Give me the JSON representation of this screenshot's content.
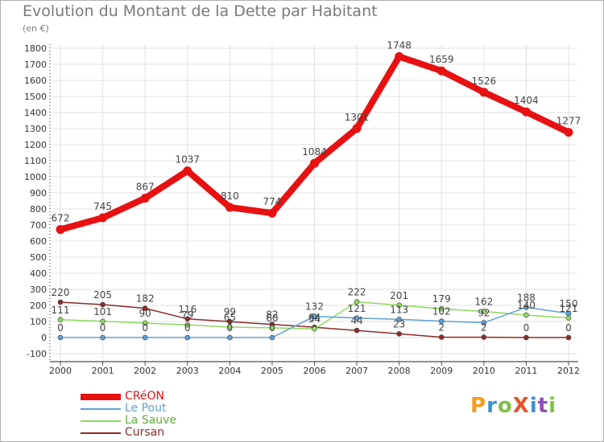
{
  "title": "Evolution du Montant de la Dette par Habitant",
  "unit_label": "(en €)",
  "logo": {
    "text": "ProXiti",
    "colors": [
      "#f39a1e",
      "#3d8fd0",
      "#7cc243",
      "#e8542b",
      "#3d8fd0",
      "#8c4fb3",
      "#7cc243"
    ]
  },
  "chart_data": {
    "type": "line",
    "x": [
      "2000",
      "2001",
      "2002",
      "2003",
      "2004",
      "2005",
      "2006",
      "2007",
      "2008",
      "2009",
      "2010",
      "2011",
      "2012"
    ],
    "ylim": [
      -100,
      1800
    ],
    "yticks": [
      -100,
      0,
      100,
      200,
      300,
      400,
      500,
      600,
      700,
      800,
      900,
      1000,
      1100,
      1200,
      1300,
      1400,
      1500,
      1600,
      1700,
      1800
    ],
    "grid": true,
    "legend_position": "bottom-left",
    "series": [
      {
        "name": "CRéON",
        "color": "#e81010",
        "values": [
          672,
          745,
          867,
          1037,
          810,
          774,
          1084,
          1301,
          1748,
          1659,
          1526,
          1404,
          1277
        ]
      },
      {
        "name": "Le Pout",
        "color": "#5ea0d8",
        "values": [
          0,
          0,
          0,
          0,
          0,
          0,
          132,
          121,
          113,
          102,
          92,
          188,
          150
        ]
      },
      {
        "name": "La Sauve",
        "color": "#90d860",
        "values": [
          111,
          101,
          90,
          79,
          65,
          60,
          54,
          222,
          201,
          179,
          162,
          140,
          121
        ]
      },
      {
        "name": "Cursan",
        "color": "#8a2a2a",
        "values": [
          220,
          205,
          182,
          116,
          99,
          82,
          64,
          44,
          23,
          2,
          2,
          0,
          0
        ]
      }
    ],
    "data_labels": [
      [
        "672",
        "745",
        "867",
        "1037",
        "810",
        "774",
        "1084",
        "1301",
        "1748",
        "1659",
        "1526",
        "1404",
        "1277"
      ],
      [
        "0",
        "0",
        "0",
        "0",
        "0",
        "0",
        "132",
        "121",
        "113",
        "102",
        "92",
        "188",
        "150"
      ],
      [
        "111",
        "101",
        "90",
        "79",
        "65",
        "60",
        "54",
        "222",
        "201",
        "179",
        "162",
        "140",
        "121"
      ],
      [
        "220",
        "205",
        "182",
        "116",
        "99",
        "82",
        "64",
        "44",
        "23",
        "2",
        "2",
        "0",
        "0"
      ]
    ]
  }
}
